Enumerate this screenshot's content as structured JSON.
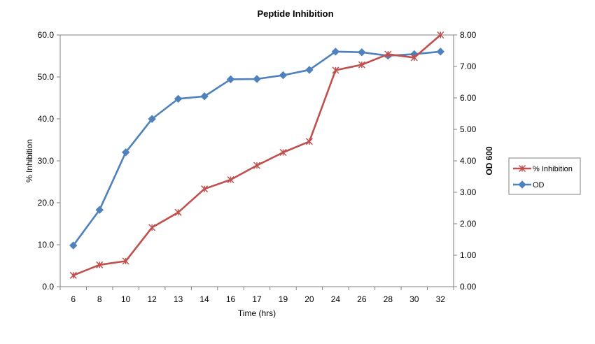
{
  "chart_data": {
    "type": "line",
    "title": "Peptide Inhibition",
    "xlabel": "Time (hrs)",
    "ylabel": "% Inhibition",
    "y2label": "OD 600",
    "categories": [
      "6",
      "8",
      "10",
      "12",
      "13",
      "14",
      "16",
      "17",
      "19",
      "20",
      "24",
      "26",
      "28",
      "30",
      "32"
    ],
    "ylim": [
      0,
      60
    ],
    "y2lim": [
      0,
      8
    ],
    "yticks": [
      "0.0",
      "10.0",
      "20.0",
      "30.0",
      "40.0",
      "50.0",
      "60.0"
    ],
    "y2ticks": [
      "0.00",
      "1.00",
      "2.00",
      "3.00",
      "4.00",
      "5.00",
      "6.00",
      "7.00",
      "8.00"
    ],
    "grid": false,
    "legend_position": "right",
    "series": [
      {
        "name": "% Inhibition",
        "axis": "left",
        "color": "#C0504D",
        "marker": "star",
        "values": [
          2.7,
          5.2,
          6.1,
          14.1,
          17.7,
          23.3,
          25.5,
          28.9,
          32.0,
          34.6,
          51.6,
          52.9,
          55.4,
          54.6,
          60.0
        ]
      },
      {
        "name": "OD",
        "axis": "right",
        "color": "#4F81BD",
        "marker": "diamond",
        "values": [
          1.31,
          2.44,
          4.27,
          5.33,
          5.97,
          6.05,
          6.59,
          6.6,
          6.72,
          6.89,
          7.47,
          7.45,
          7.34,
          7.39,
          7.47
        ]
      }
    ]
  }
}
